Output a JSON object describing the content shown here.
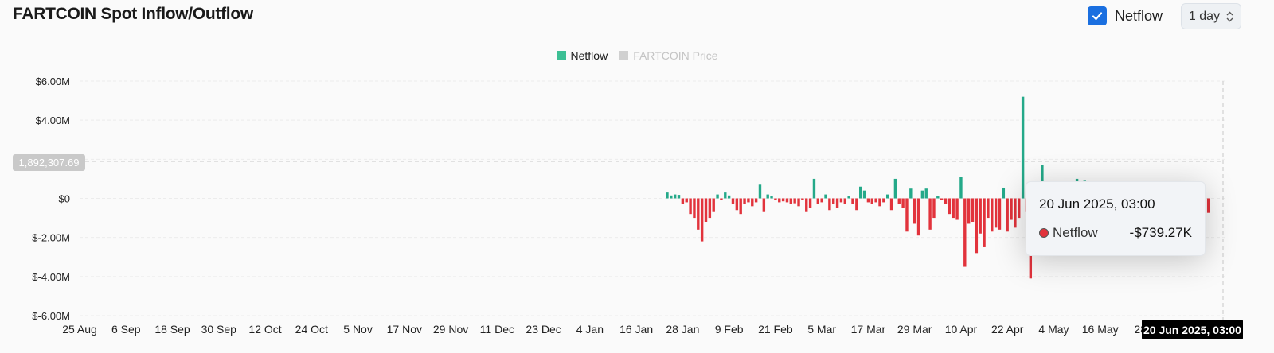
{
  "header": {
    "title": "FARTCOIN Spot Inflow/Outflow",
    "netflow_toggle_label": "Netflow",
    "interval_label": "1 day"
  },
  "legend": [
    {
      "label": "Netflow",
      "color": "#3cbf94",
      "active": true
    },
    {
      "label": "FARTCOIN Price",
      "color": "#d0d0d0",
      "active": false
    }
  ],
  "colors": {
    "positive": "#24a989",
    "negative": "#e2333c",
    "accent": "#1a6fe0"
  },
  "tooltip": {
    "date": "20 Jun 2025, 03:00",
    "series_label": "Netflow",
    "value": "-$739.27K"
  },
  "crosshair": {
    "y_label": "1,892,307.69",
    "x_label": "20 Jun 2025, 03:00"
  },
  "chart_data": {
    "type": "bar",
    "title": "FARTCOIN Spot Inflow/Outflow",
    "ylim": [
      -6000000,
      6000000
    ],
    "y_ticks": [
      6000000,
      4000000,
      2000000,
      0,
      -2000000,
      -4000000,
      -6000000
    ],
    "y_tick_labels": [
      "$6.00M",
      "$4.00M",
      "",
      "$0",
      "$-2.00M",
      "$-4.00M",
      "$-6.00M"
    ],
    "x_tick_labels": [
      "25 Aug",
      "6 Sep",
      "18 Sep",
      "30 Sep",
      "12 Oct",
      "24 Oct",
      "5 Nov",
      "17 Nov",
      "29 Nov",
      "11 Dec",
      "23 Dec",
      "4 Jan",
      "16 Jan",
      "28 Jan",
      "9 Feb",
      "21 Feb",
      "5 Mar",
      "17 Mar",
      "29 Mar",
      "10 Apr",
      "22 Apr",
      "4 May",
      "16 May",
      "28 M"
    ],
    "x_tick_day_index": [
      0,
      12,
      24,
      36,
      48,
      60,
      72,
      84,
      96,
      108,
      120,
      132,
      144,
      156,
      168,
      180,
      192,
      204,
      216,
      228,
      240,
      252,
      264,
      276
    ],
    "total_days": 300,
    "grid": true,
    "legend_position": "top-center",
    "series": [
      {
        "name": "Netflow",
        "start_day_index": 152,
        "values": [
          300000,
          150000,
          200000,
          180000,
          -300000,
          -200000,
          -800000,
          -1000000,
          -1600000,
          -2200000,
          -1200000,
          -1000000,
          -700000,
          200000,
          -100000,
          300000,
          150000,
          -300000,
          -600000,
          -800000,
          -300000,
          -200000,
          -400000,
          -200000,
          700000,
          -700000,
          200000,
          100000,
          -100000,
          -200000,
          -150000,
          -200000,
          -300000,
          -250000,
          -400000,
          -100000,
          -700000,
          -500000,
          1000000,
          -300000,
          -200000,
          200000,
          -600000,
          -300000,
          -500000,
          -200000,
          -300000,
          100000,
          -300000,
          -600000,
          600000,
          400000,
          -200000,
          -300000,
          -200000,
          -400000,
          -200000,
          200000,
          -600000,
          1000000,
          -300000,
          -500000,
          -1700000,
          500000,
          -1300000,
          -1900000,
          400000,
          500000,
          -1600000,
          -1000000,
          100000,
          -100000,
          -300000,
          -800000,
          -1000000,
          -1100000,
          1100000,
          -3500000,
          -1300000,
          -1200000,
          -2800000,
          -1800000,
          -2500000,
          -1000000,
          -1700000,
          -1500000,
          -1600000,
          550000,
          -1700000,
          -1100000,
          -1500000,
          -1000000,
          5200000,
          -700000,
          -4100000,
          -1000000,
          -600000,
          1700000,
          -1500000,
          -2500000,
          -2900000,
          -1500000,
          -1800000,
          -2500000,
          -1000000,
          -600000,
          1000000,
          -800000,
          900000,
          -400000,
          -600000,
          -2300000,
          -2000000,
          -1500000,
          -1000000,
          -800000,
          -1200000,
          -1600000,
          -400000,
          -1700000,
          -2200000,
          -1800000,
          -1600000,
          -1500000,
          -700000,
          -1100000,
          -1600000,
          -800000,
          -700000,
          -1200000,
          -1700000,
          -900000,
          -700000,
          -600000,
          -700000,
          -900000,
          -700000,
          -1200000,
          -1600000,
          -700000,
          -740000
        ]
      }
    ]
  }
}
